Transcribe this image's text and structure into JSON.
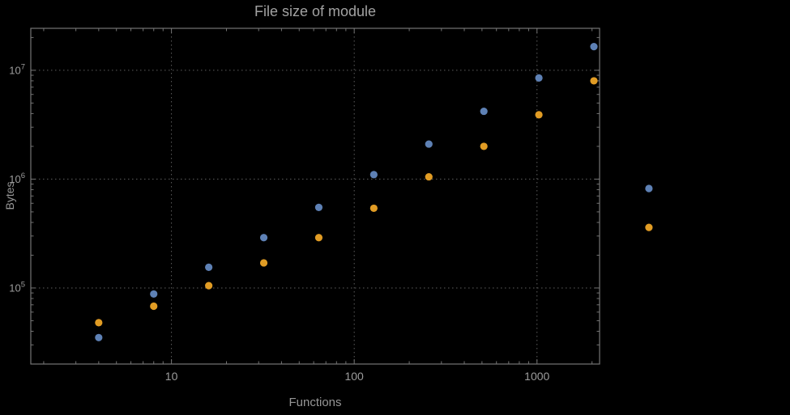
{
  "chart_data": {
    "type": "scatter",
    "title": "File size of module",
    "xlabel": "Functions",
    "ylabel": "Bytes",
    "x_scale": "log",
    "y_scale": "log",
    "xlim": [
      1.7,
      2200
    ],
    "ylim": [
      20000,
      24300000
    ],
    "grid": "dotted lines at major (decade) ticks",
    "legend": "none",
    "x": [
      4,
      8,
      16,
      32,
      64,
      128,
      256,
      512,
      1024,
      2048,
      4096
    ],
    "series": [
      {
        "name": "series-1-blue",
        "color": "#5e81b5",
        "values": [
          35000,
          88000,
          155000,
          290000,
          550000,
          1100000,
          2100000,
          4200000,
          8500000,
          16500000,
          820000
        ]
      },
      {
        "name": "series-2-orange",
        "color": "#e19c24",
        "values": [
          48000,
          68000,
          105000,
          170000,
          290000,
          540000,
          1050000,
          2000000,
          3900000,
          8000000,
          360000
        ]
      }
    ],
    "x_ticks": [
      {
        "label": "10",
        "value": 10
      },
      {
        "label": "100",
        "value": 100
      },
      {
        "label": "1000",
        "value": 1000
      }
    ],
    "y_ticks": [
      {
        "base": "10",
        "exp": "5",
        "value": 100000
      },
      {
        "base": "10",
        "exp": "6",
        "value": 1000000
      },
      {
        "base": "10",
        "exp": "7",
        "value": 10000000
      }
    ]
  },
  "colors": {
    "background": "#000000",
    "frame": "#747474",
    "grid": "#5e5e5e",
    "tick_text": "#9c9c9c",
    "title_text": "#a2a2a2",
    "series_blue": "#5e81b5",
    "series_orange": "#e19c24"
  }
}
